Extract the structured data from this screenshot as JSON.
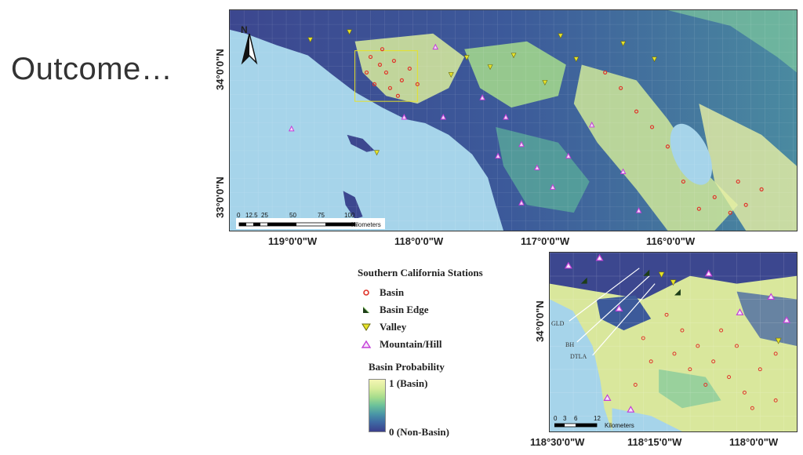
{
  "slide": {
    "title": "Outcome…"
  },
  "main_map": {
    "lat_ticks": [
      "34°0'0\"N",
      "33°0'0\"N"
    ],
    "lon_ticks": [
      "119°0'0\"W",
      "118°0'0\"W",
      "117°0'0\"W",
      "116°0'0\"W"
    ],
    "scale_labels": [
      "0",
      "12.5",
      "25",
      "50",
      "75",
      "100"
    ],
    "scale_unit": "Kilometers",
    "north_label": "N"
  },
  "inset_map": {
    "lat_ticks": [
      "34°0'0\"N"
    ],
    "lon_ticks": [
      "118°30'0\"W",
      "118°15'0\"W",
      "118°0'0\"W"
    ],
    "scale_labels": [
      "0",
      "3",
      "6",
      "12"
    ],
    "scale_unit": "Kilometers",
    "station_labels": [
      "GLD",
      "BH",
      "DTLA"
    ]
  },
  "legend": {
    "title": "Southern California Stations",
    "items": [
      {
        "label": "Basin",
        "icon": "circle-icon",
        "color": "#e0342a"
      },
      {
        "label": "Basin Edge",
        "icon": "half-triangle-icon",
        "color": "#1d3d18"
      },
      {
        "label": "Valley",
        "icon": "down-triangle-icon",
        "color": "#e6e22a"
      },
      {
        "label": "Mountain/Hill",
        "icon": "up-triangle-icon",
        "color": "#c33ed8"
      }
    ],
    "probability_title": "Basin Probability",
    "probability_high": "1 (Basin)",
    "probability_low": "0 (Non-Basin)"
  },
  "colors": {
    "ocean": "#a6d4ea",
    "low": "#3b3f8c",
    "mid": "#5cb39a",
    "high": "#eef3a6"
  }
}
